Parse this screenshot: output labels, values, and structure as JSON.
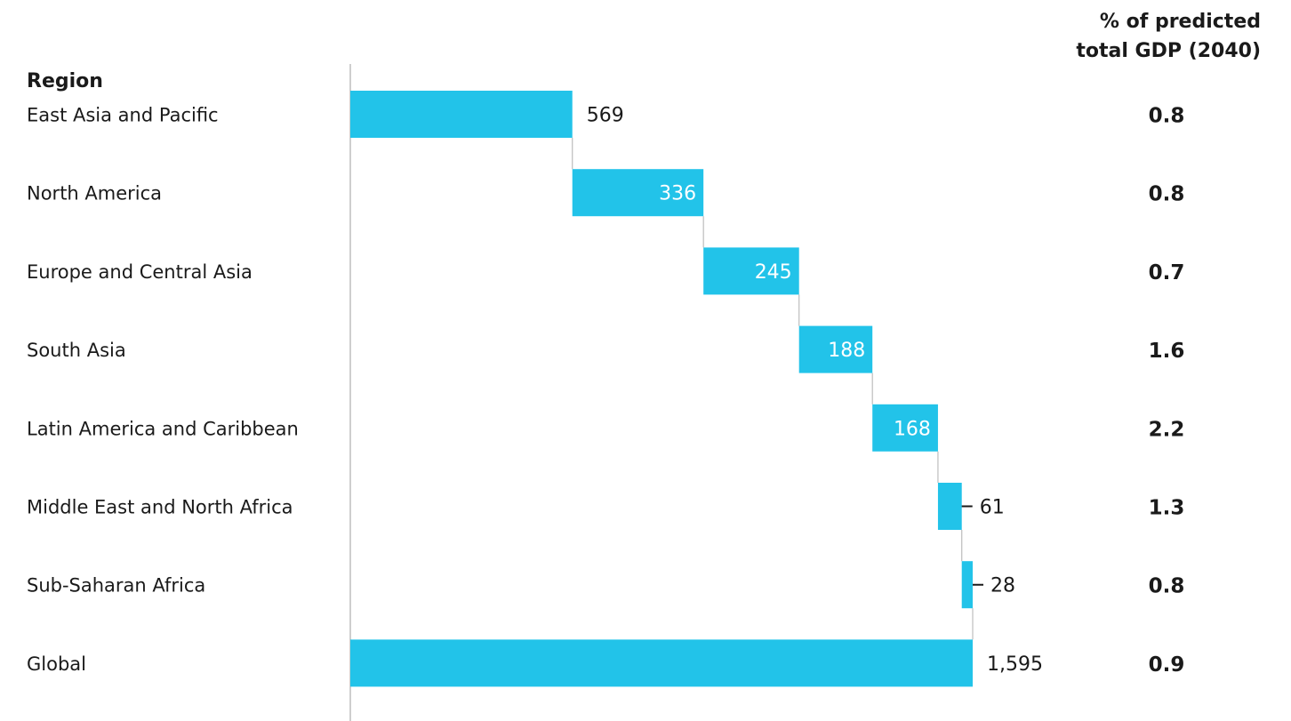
{
  "chart_data": {
    "type": "bar",
    "subtype": "waterfall",
    "category_header": "Region",
    "share_header": [
      "% of predicted",
      "total GDP (2040)"
    ],
    "bar_color": "#22c3e9",
    "categories": [
      "East Asia and Pacific",
      "North America",
      "Europe and Central Asia",
      "South Asia",
      "Latin America and Caribbean",
      "Middle East and North Africa",
      "Sub-Saharan Africa",
      "Global"
    ],
    "values": [
      569,
      336,
      245,
      188,
      168,
      61,
      28,
      1595
    ],
    "value_labels": [
      "569",
      "336",
      "245",
      "188",
      "168",
      "61",
      "28",
      "1,595"
    ],
    "share_values": [
      "0.8",
      "0.8",
      "0.7",
      "1.6",
      "2.2",
      "1.3",
      "0.8",
      "0.9"
    ],
    "total_index": 7
  }
}
